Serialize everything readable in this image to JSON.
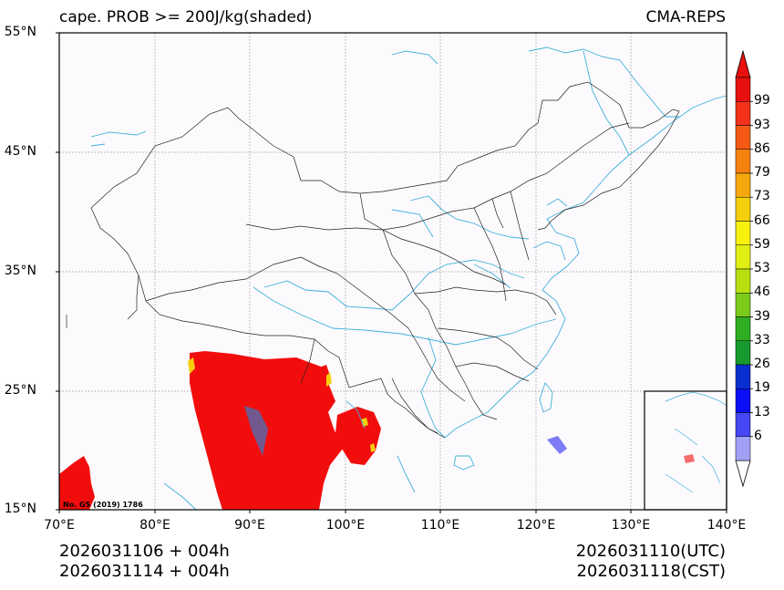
{
  "header": {
    "title_left": "cape. PROB >= 200J/kg(shaded)",
    "title_right": "CMA-REPS"
  },
  "axes": {
    "lat_labels": [
      "55°N",
      "45°N",
      "35°N",
      "25°N",
      "15°N"
    ],
    "lon_labels": [
      "70°E",
      "80°E",
      "90°E",
      "100°E",
      "110°E",
      "120°E",
      "130°E",
      "140°E"
    ]
  },
  "map": {
    "watermark": "No. GS (2019) 1786",
    "shade_color": "#f20d0d",
    "land_bg": "#fcfafc",
    "coast_color": "#3fb0dc",
    "border_color": "#222222"
  },
  "colorbar": {
    "labels": [
      "99",
      "93",
      "86",
      "79",
      "73",
      "66",
      "59",
      "53",
      "46",
      "39",
      "33",
      "26",
      "19",
      "13",
      "6"
    ],
    "colors": [
      "#e8100e",
      "#f2321a",
      "#f45a14",
      "#f5820f",
      "#f6a70d",
      "#f6cf0c",
      "#f8f00e",
      "#e0ef14",
      "#b8e010",
      "#7cca1a",
      "#2fae22",
      "#169a2e",
      "#0a2fcf",
      "#0a0ef5",
      "#4646f3",
      "#a0a0f5"
    ]
  },
  "footer": {
    "init_utc": "2026031106  +  004h",
    "init_cst": "2026031114  +  004h",
    "valid_utc": "2026031110(UTC)",
    "valid_cst": "2026031118(CST)"
  }
}
